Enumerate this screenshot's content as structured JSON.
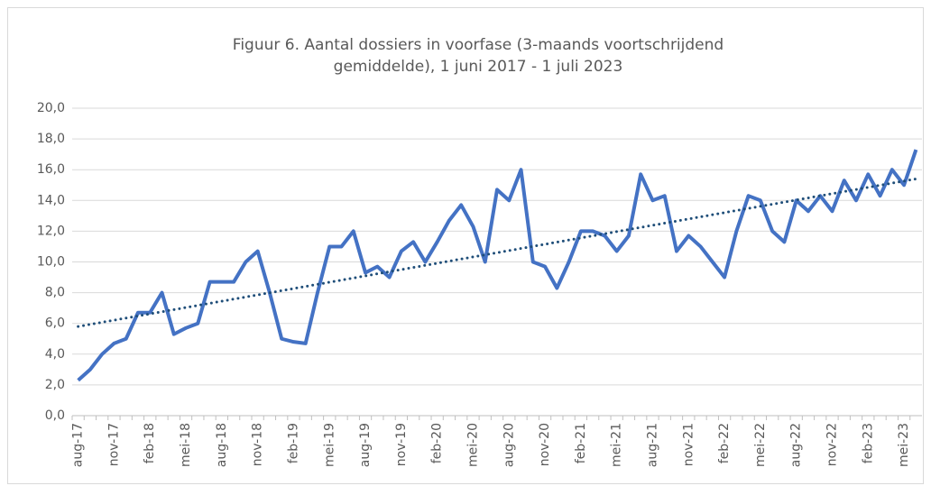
{
  "chart_data": {
    "type": "line",
    "title": "Figuur 6. Aantal dossiers in voorfase (3-maands voortschrijdend",
    "subtitle": "gemiddelde), 1 juni 2017 - 1 juli 2023",
    "categories": [
      "aug-17",
      null,
      null,
      "nov-17",
      null,
      null,
      "feb-18",
      null,
      null,
      "mei-18",
      null,
      null,
      "aug-18",
      null,
      null,
      "nov-18",
      null,
      null,
      "feb-19",
      null,
      null,
      "mei-19",
      null,
      null,
      "aug-19",
      null,
      null,
      "nov-19",
      null,
      null,
      "feb-20",
      null,
      null,
      "mei-20",
      null,
      null,
      "aug-20",
      null,
      null,
      "nov-20",
      null,
      null,
      "feb-21",
      null,
      null,
      "mei-21",
      null,
      null,
      "aug-21",
      null,
      null,
      "nov-21",
      null,
      null,
      "feb-22",
      null,
      null,
      "mei-22",
      null,
      null,
      "aug-22",
      null,
      null,
      "nov-22",
      null,
      null,
      "feb-23",
      null,
      null,
      "mei-23",
      null
    ],
    "series": [
      {
        "name": "Aantal dossiers",
        "color": "#4472c4",
        "values": [
          2.3,
          3.0,
          4.0,
          4.7,
          5.0,
          6.7,
          6.7,
          8.0,
          5.3,
          5.7,
          6.0,
          8.7,
          8.7,
          8.7,
          10.0,
          10.7,
          8.0,
          5.0,
          4.8,
          4.7,
          8.0,
          11.0,
          11.0,
          12.0,
          9.3,
          9.7,
          9.0,
          10.7,
          11.3,
          10.0,
          11.3,
          12.7,
          13.7,
          12.3,
          10.0,
          14.7,
          14.0,
          16.0,
          10.0,
          9.7,
          8.3,
          10.0,
          12.0,
          12.0,
          11.7,
          10.7,
          11.7,
          15.7,
          14.0,
          14.3,
          10.7,
          11.7,
          11.0,
          10.0,
          9.0,
          12.0,
          14.3,
          14.0,
          12.0,
          11.3,
          14.0,
          13.3,
          14.3,
          13.3,
          15.3,
          14.0,
          15.7,
          14.3,
          16.0,
          15.0,
          17.3
        ]
      }
    ],
    "trendline": {
      "type": "linear",
      "values": [
        5.8,
        15.4
      ],
      "color": "#1f4e79"
    },
    "ylim": [
      0,
      20
    ],
    "yticks": [
      {
        "value": 0,
        "label": "0,0"
      },
      {
        "value": 2,
        "label": "2,0"
      },
      {
        "value": 4,
        "label": "4,0"
      },
      {
        "value": 6,
        "label": "6,0"
      },
      {
        "value": 8,
        "label": "8,0"
      },
      {
        "value": 10,
        "label": "10,0"
      },
      {
        "value": 12,
        "label": "12,0"
      },
      {
        "value": 14,
        "label": "14,0"
      },
      {
        "value": 16,
        "label": "16,0"
      },
      {
        "value": 18,
        "label": "18,0"
      },
      {
        "value": 20,
        "label": "20,0"
      }
    ],
    "grid": true
  }
}
